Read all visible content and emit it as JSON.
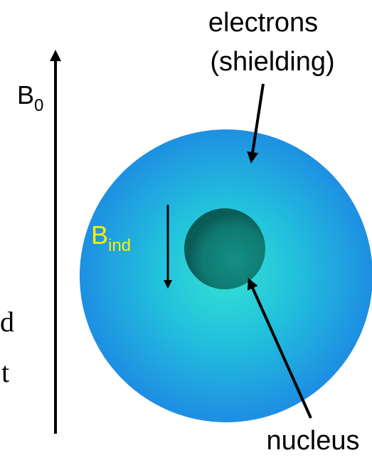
{
  "labels": {
    "electrons": "electrons",
    "shielding": "(shielding)",
    "b0": {
      "main": "B",
      "sub": "0"
    },
    "bind": {
      "main": "B",
      "sub": "ind"
    },
    "nucleus": "nucleus",
    "cut_text": [
      "d",
      "t"
    ]
  }
}
